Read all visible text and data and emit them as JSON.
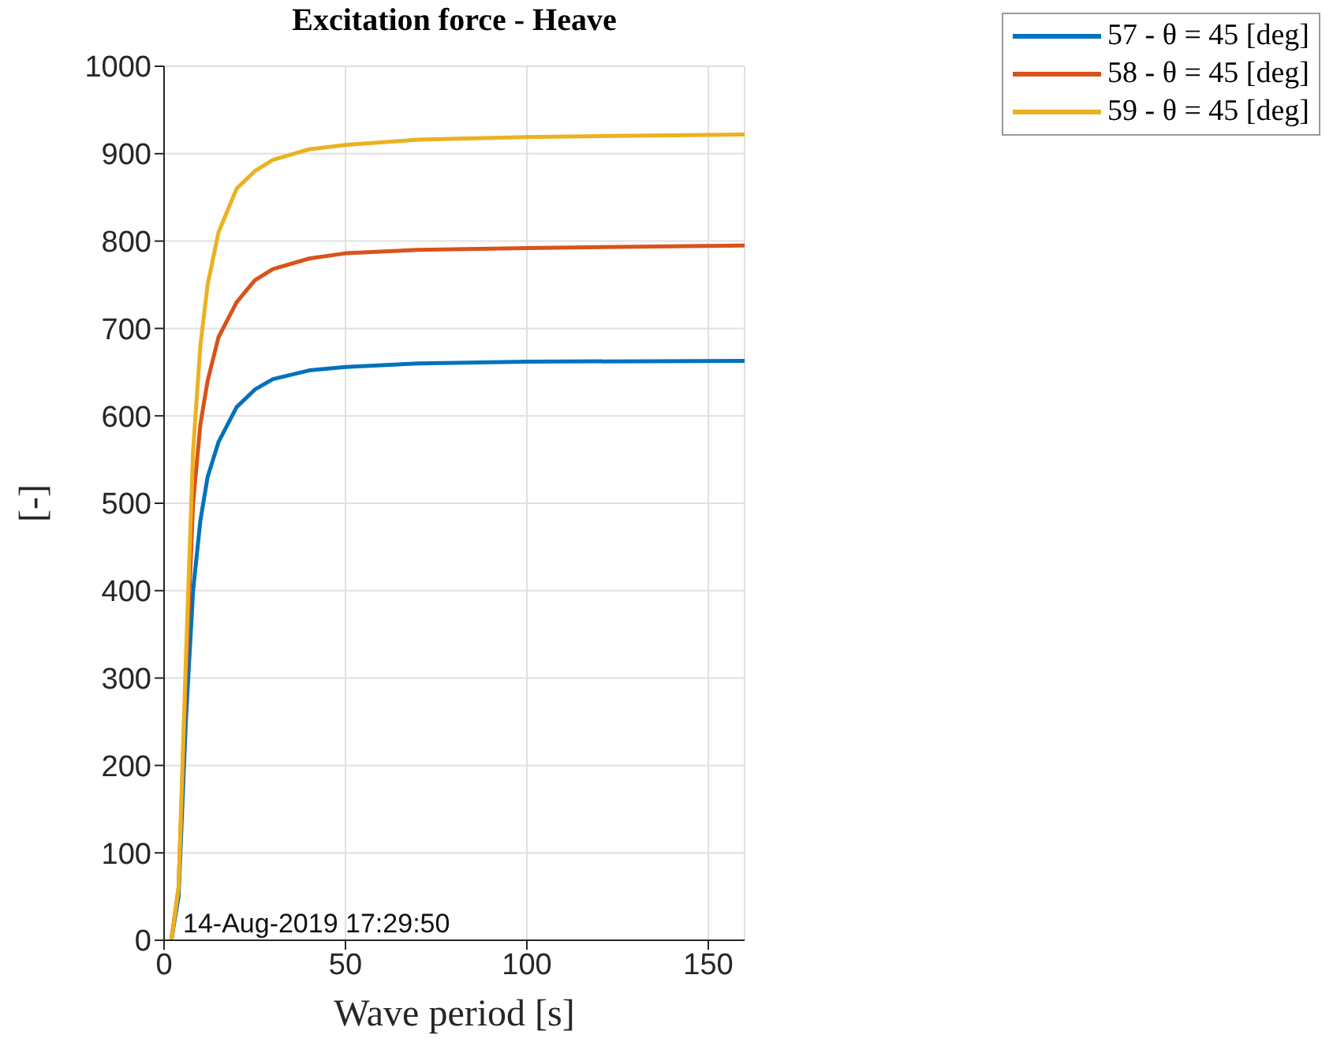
{
  "chart_data": {
    "type": "line",
    "title": "Excitation force - Heave",
    "xlabel": "Wave period [s]",
    "ylabel": "[-]",
    "xlim": [
      0,
      160
    ],
    "xticks": [
      0,
      50,
      100,
      150
    ],
    "ylim": [
      0,
      1000
    ],
    "yticks": [
      0,
      100,
      200,
      300,
      400,
      500,
      600,
      700,
      800,
      900,
      1000
    ],
    "grid": true,
    "legend": "top right",
    "marker": "none",
    "line_style": "solid",
    "annotations": [
      "14-Aug-2019 17:29:50"
    ],
    "series": [
      {
        "name": "57 - θ =  45 [deg]",
        "color": "#0072bd",
        "x": [
          2,
          4,
          6,
          8,
          10,
          12,
          15,
          20,
          25,
          30,
          40,
          50,
          70,
          100,
          160
        ],
        "values": [
          0,
          50,
          250,
          400,
          480,
          530,
          570,
          610,
          630,
          642,
          652,
          656,
          660,
          662,
          663
        ]
      },
      {
        "name": "58 - θ =  45 [deg]",
        "color": "#d95319",
        "x": [
          2,
          4,
          6,
          8,
          10,
          12,
          15,
          20,
          25,
          30,
          40,
          50,
          70,
          100,
          160
        ],
        "values": [
          0,
          60,
          300,
          500,
          590,
          640,
          690,
          730,
          755,
          768,
          780,
          786,
          790,
          792,
          795
        ]
      },
      {
        "name": "59 - θ =  45 [deg]",
        "color": "#edb120",
        "x": [
          2,
          4,
          6,
          8,
          10,
          12,
          15,
          20,
          25,
          30,
          40,
          50,
          70,
          100,
          160
        ],
        "values": [
          0,
          60,
          320,
          560,
          680,
          750,
          810,
          860,
          880,
          893,
          905,
          910,
          916,
          919,
          922
        ]
      }
    ]
  }
}
